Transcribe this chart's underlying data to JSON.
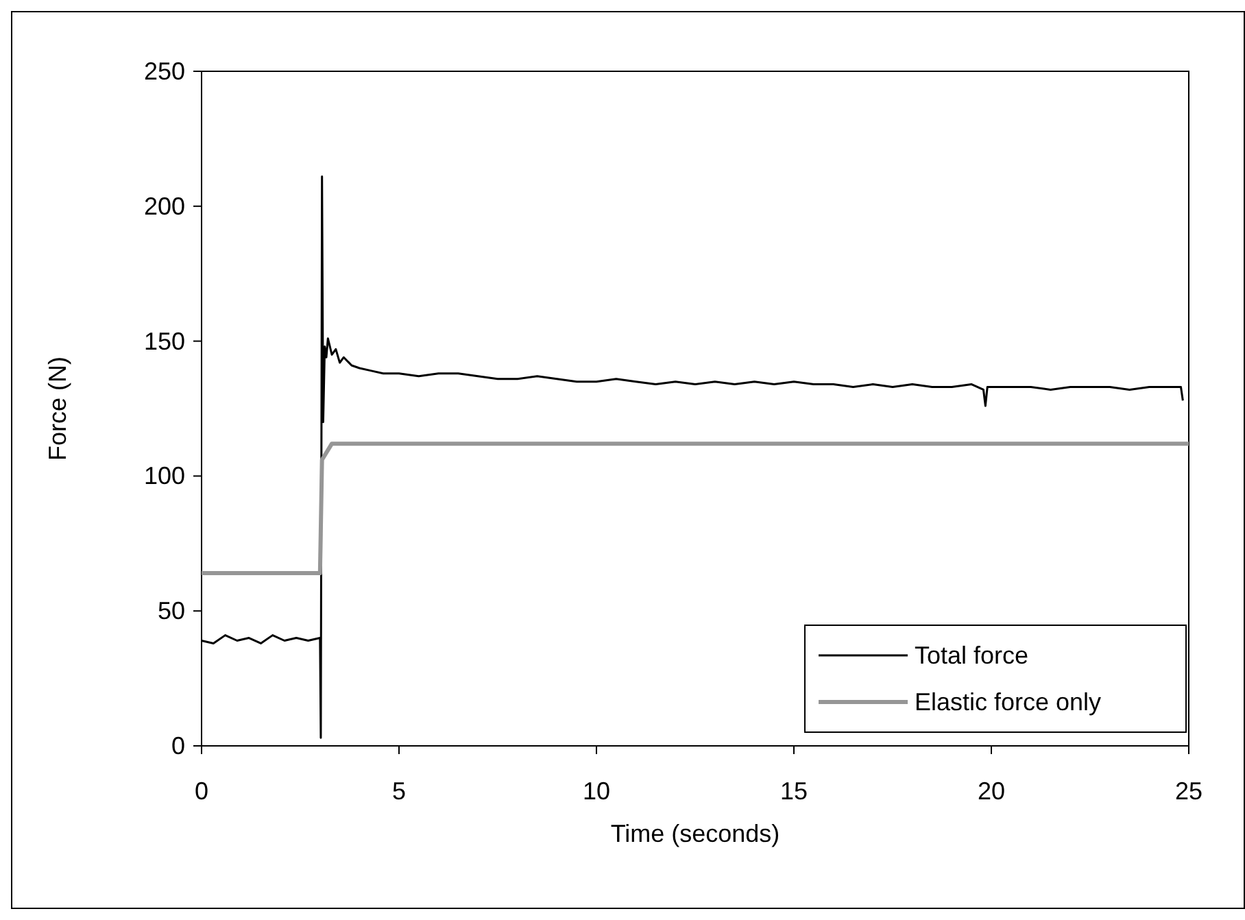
{
  "chart_data": {
    "type": "line",
    "xlabel": "Time (seconds)",
    "ylabel": "Force (N)",
    "xlim": [
      0,
      25
    ],
    "ylim": [
      0,
      250
    ],
    "xticks": [
      0,
      5,
      10,
      15,
      20,
      25
    ],
    "yticks": [
      0,
      50,
      100,
      150,
      200,
      250
    ],
    "grid": false,
    "legend": "bottom right",
    "marker": "none",
    "line_style": "solid",
    "series": [
      {
        "name": "Total force",
        "color": "#000000",
        "x": [
          0,
          0.3,
          0.6,
          0.9,
          1.2,
          1.5,
          1.8,
          2.1,
          2.4,
          2.7,
          3.0,
          3.02,
          3.05,
          3.08,
          3.12,
          3.16,
          3.2,
          3.3,
          3.4,
          3.5,
          3.6,
          3.8,
          4,
          4.3,
          4.6,
          5,
          5.5,
          6,
          6.5,
          7,
          7.5,
          8,
          8.5,
          9,
          9.5,
          10,
          10.5,
          11,
          11.5,
          12,
          12.5,
          13,
          13.5,
          14,
          14.5,
          15,
          15.5,
          16,
          16.5,
          17,
          17.5,
          18,
          18.5,
          19,
          19.5,
          19.8,
          19.85,
          19.9,
          20.5,
          21,
          21.5,
          22,
          22.5,
          23,
          23.5,
          24,
          24.5,
          24.8,
          24.85
        ],
        "values": [
          39,
          38,
          41,
          39,
          40,
          38,
          41,
          39,
          40,
          39,
          40,
          3,
          211,
          120,
          148,
          144,
          151,
          145,
          147,
          142,
          144,
          141,
          140,
          139,
          138,
          138,
          137,
          138,
          138,
          137,
          136,
          136,
          137,
          136,
          135,
          135,
          136,
          135,
          134,
          135,
          134,
          135,
          134,
          135,
          134,
          135,
          134,
          134,
          133,
          134,
          133,
          134,
          133,
          133,
          134,
          132,
          126,
          133,
          133,
          133,
          132,
          133,
          133,
          133,
          132,
          133,
          133,
          133,
          128
        ]
      },
      {
        "name": "Elastic force only",
        "color": "#969696",
        "x": [
          0,
          3.0,
          3.05,
          3.3,
          25
        ],
        "values": [
          64,
          64,
          106,
          112,
          112
        ]
      }
    ]
  }
}
